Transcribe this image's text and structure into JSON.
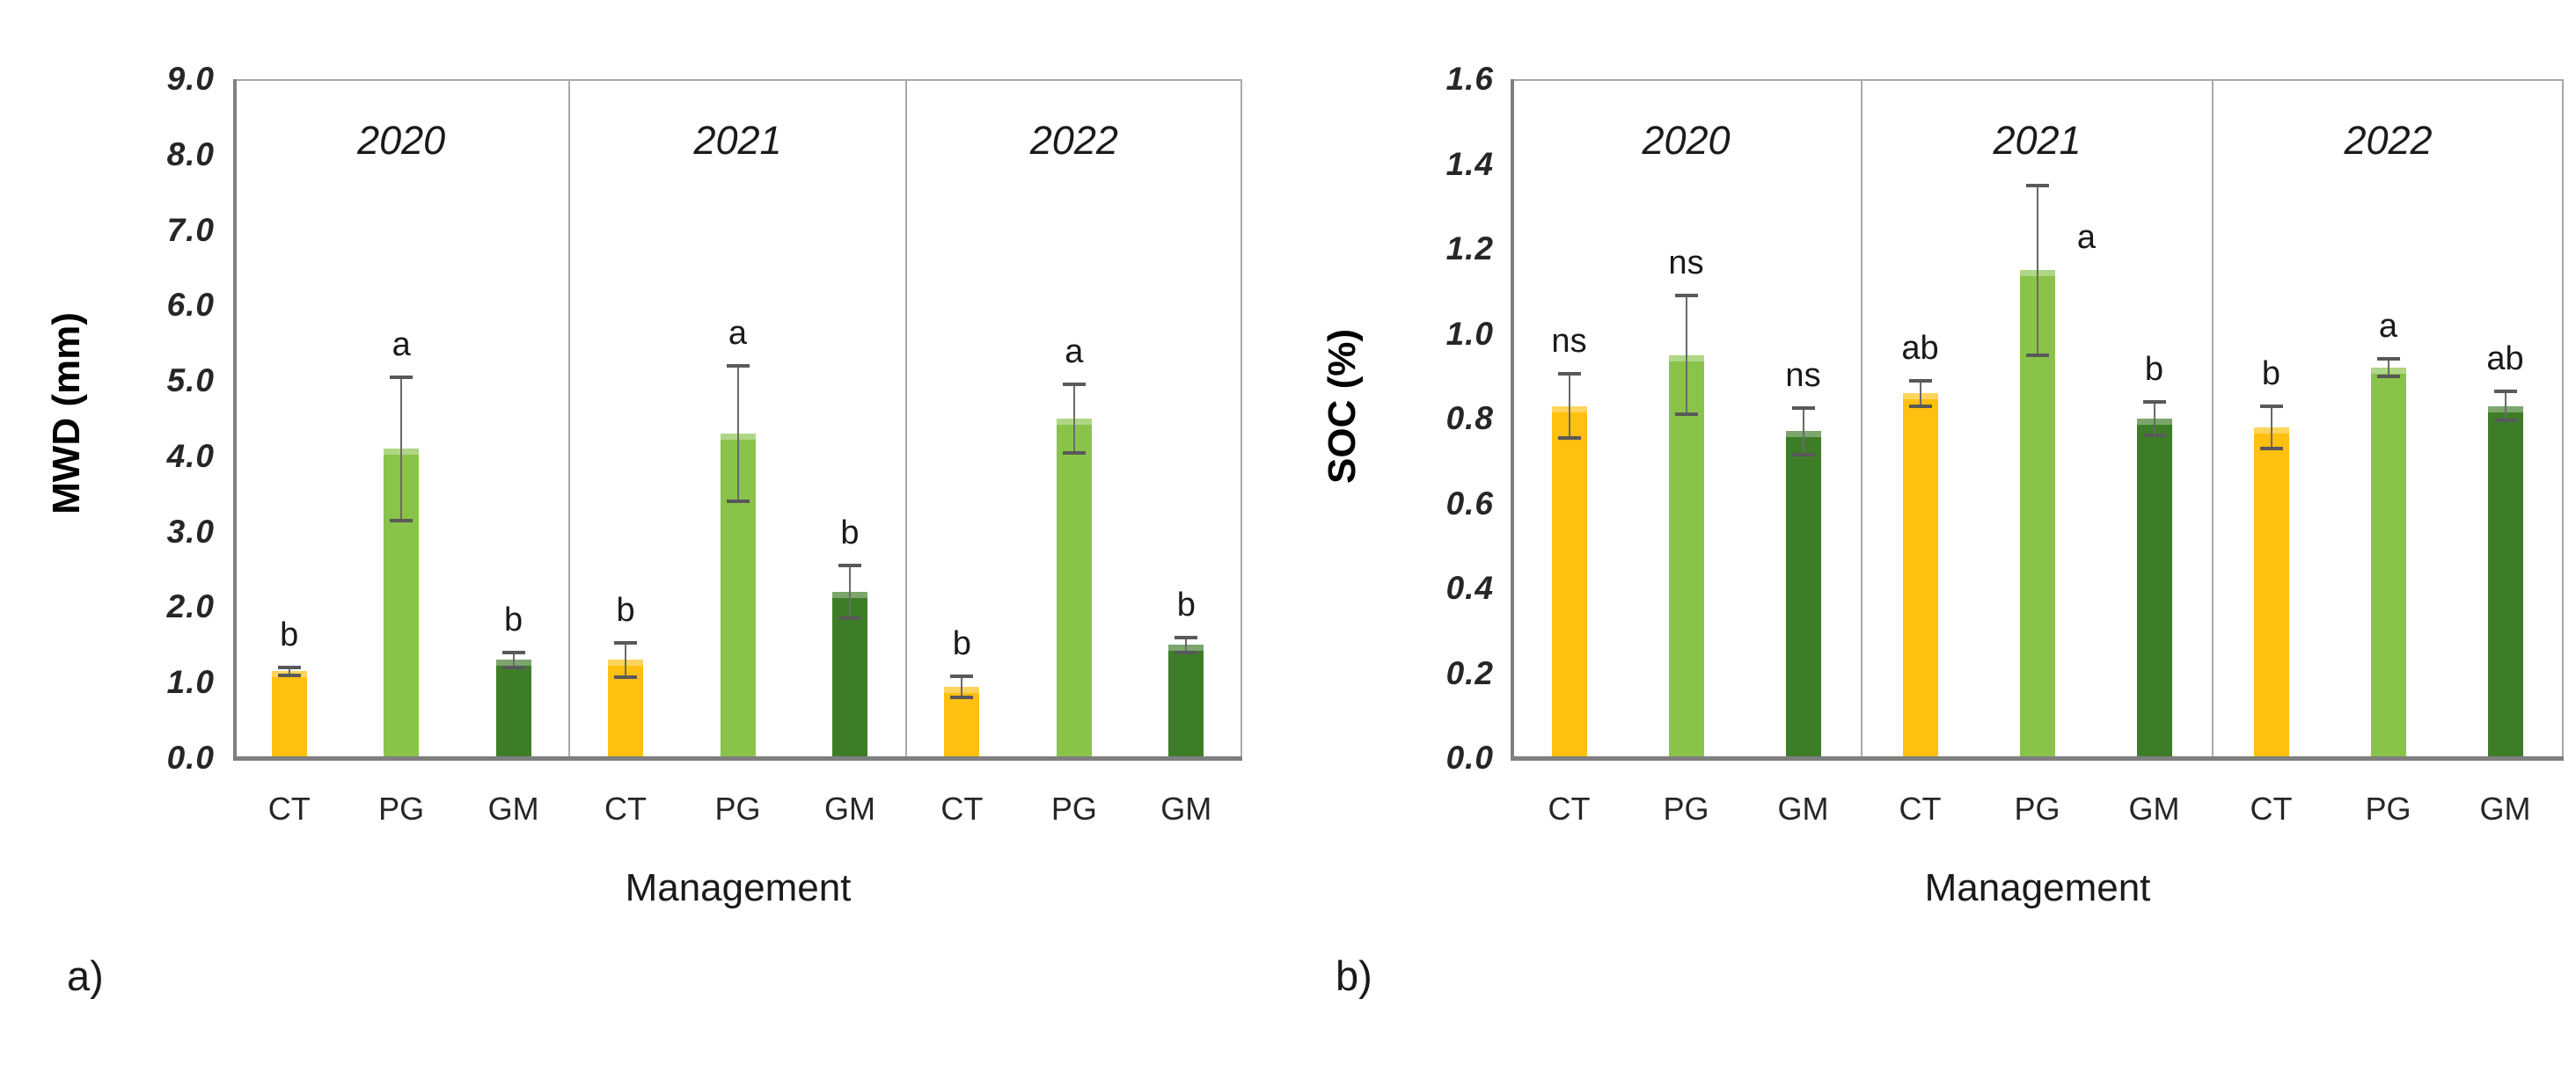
{
  "figure": {
    "background": "#ffffff",
    "bar_colors": {
      "CT": "#FFC010",
      "PG": "#8AC34A",
      "GM": "#3E7D28"
    },
    "error_bar_color": "#595959",
    "axis_color": "#808080",
    "panel_border_color": "#A9A9A9"
  },
  "chart_data": [
    {
      "id": "mwd",
      "type": "bar",
      "corner_label": "a)",
      "ylabel": "MWD (mm)",
      "xlabel": "Management",
      "ylim": [
        0,
        9
      ],
      "ytick_step": 1,
      "ytick_decimals": 1,
      "grid": false,
      "legend": "none",
      "group_labels": [
        "2020",
        "2021",
        "2022"
      ],
      "categories": [
        "CT",
        "PG",
        "GM"
      ],
      "groups": [
        {
          "label": "2020",
          "values": [
            1.15,
            4.1,
            1.3
          ],
          "errors": [
            0.05,
            0.95,
            0.1
          ],
          "sig_letters": [
            "b",
            "a",
            "b"
          ],
          "letter_side": [
            "top",
            "top",
            "top"
          ]
        },
        {
          "label": "2021",
          "values": [
            1.3,
            4.3,
            2.2
          ],
          "errors": [
            0.23,
            0.9,
            0.35
          ],
          "sig_letters": [
            "b",
            "a",
            "b"
          ],
          "letter_side": [
            "top",
            "top",
            "top"
          ]
        },
        {
          "label": "2022",
          "values": [
            0.95,
            4.5,
            1.5
          ],
          "errors": [
            0.14,
            0.45,
            0.1
          ],
          "sig_letters": [
            "b",
            "a",
            "b"
          ],
          "letter_side": [
            "top",
            "top",
            "top"
          ]
        }
      ]
    },
    {
      "id": "soc",
      "type": "bar",
      "corner_label": "b)",
      "ylabel": "SOC (%)",
      "xlabel": "Management",
      "ylim": [
        0,
        1.6
      ],
      "ytick_step": 0.2,
      "ytick_decimals": 1,
      "grid": false,
      "legend": "none",
      "group_labels": [
        "2020",
        "2021",
        "2022"
      ],
      "categories": [
        "CT",
        "PG",
        "GM"
      ],
      "groups": [
        {
          "label": "2020",
          "values": [
            0.83,
            0.95,
            0.77
          ],
          "errors": [
            0.075,
            0.14,
            0.055
          ],
          "sig_letters": [
            "ns",
            "ns",
            "ns"
          ],
          "letter_side": [
            "top",
            "top",
            "top"
          ]
        },
        {
          "label": "2021",
          "values": [
            0.86,
            1.15,
            0.8
          ],
          "errors": [
            0.03,
            0.2,
            0.04
          ],
          "sig_letters": [
            "ab",
            "a",
            "b"
          ],
          "letter_side": [
            "top",
            "right",
            "top"
          ]
        },
        {
          "label": "2022",
          "values": [
            0.78,
            0.92,
            0.83
          ],
          "errors": [
            0.05,
            0.02,
            0.035
          ],
          "sig_letters": [
            "b",
            "a",
            "ab"
          ],
          "letter_side": [
            "top",
            "top",
            "top"
          ]
        }
      ]
    }
  ]
}
